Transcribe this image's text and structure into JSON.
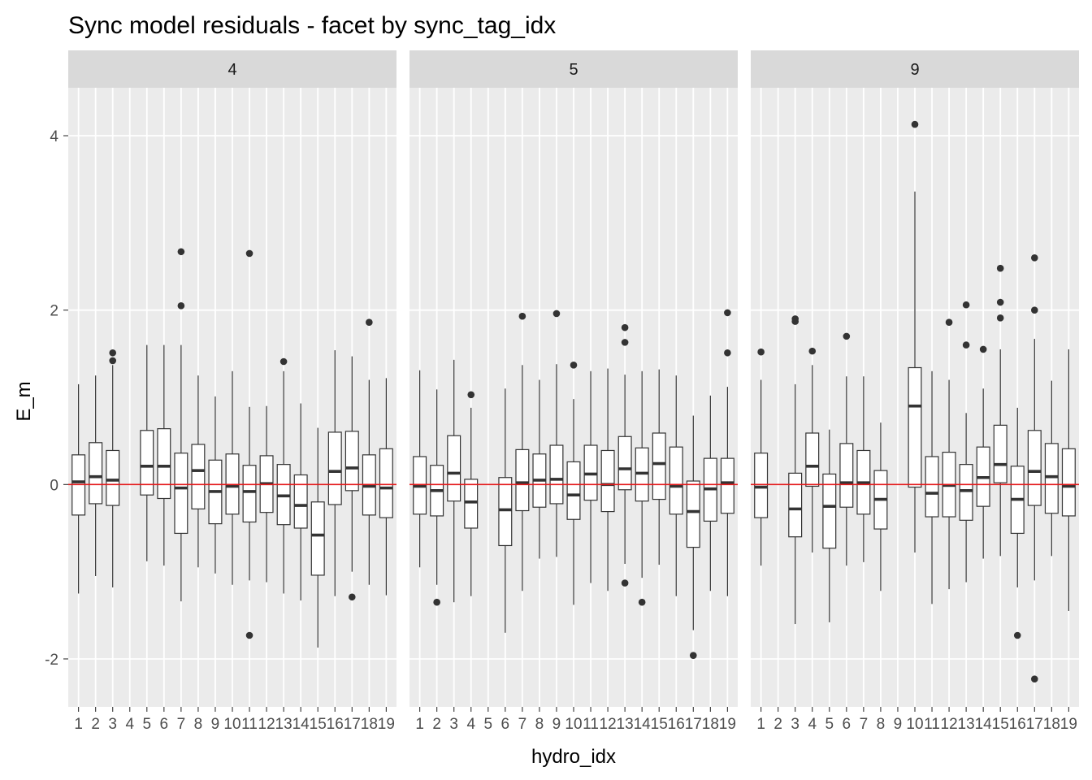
{
  "chart_data": {
    "type": "boxplot",
    "title": "Sync model residuals - facet by sync_tag_idx",
    "xlabel": "hydro_idx",
    "ylabel": "E_m",
    "ylim": [
      -2.55,
      4.55
    ],
    "yticks": [
      -2,
      0,
      2,
      4
    ],
    "reference_line": {
      "y": 0,
      "color": "#e41a1c"
    },
    "categories": [
      "1",
      "2",
      "3",
      "4",
      "5",
      "6",
      "7",
      "8",
      "9",
      "10",
      "11",
      "12",
      "13",
      "14",
      "15",
      "16",
      "17",
      "18",
      "19"
    ],
    "facets": [
      {
        "label": "4",
        "boxes": [
          {
            "x": "1",
            "lw": -1.25,
            "q1": -0.35,
            "med": 0.03,
            "q3": 0.34,
            "uw": 1.15,
            "out": []
          },
          {
            "x": "2",
            "lw": -1.05,
            "q1": -0.22,
            "med": 0.09,
            "q3": 0.48,
            "uw": 1.25,
            "out": []
          },
          {
            "x": "3",
            "lw": -1.18,
            "q1": -0.24,
            "med": 0.05,
            "q3": 0.39,
            "uw": 1.37,
            "out": [
              1.51,
              1.42
            ]
          },
          {
            "x": "5",
            "lw": -0.88,
            "q1": -0.12,
            "med": 0.21,
            "q3": 0.62,
            "uw": 1.6,
            "out": []
          },
          {
            "x": "6",
            "lw": -0.93,
            "q1": -0.16,
            "med": 0.21,
            "q3": 0.64,
            "uw": 1.6,
            "out": []
          },
          {
            "x": "7",
            "lw": -1.34,
            "q1": -0.56,
            "med": -0.04,
            "q3": 0.36,
            "uw": 1.6,
            "out": [
              2.67,
              2.05
            ]
          },
          {
            "x": "8",
            "lw": -0.95,
            "q1": -0.28,
            "med": 0.16,
            "q3": 0.46,
            "uw": 1.25,
            "out": []
          },
          {
            "x": "9",
            "lw": -1.02,
            "q1": -0.45,
            "med": -0.08,
            "q3": 0.28,
            "uw": 1.01,
            "out": []
          },
          {
            "x": "10",
            "lw": -1.15,
            "q1": -0.34,
            "med": -0.02,
            "q3": 0.35,
            "uw": 1.3,
            "out": []
          },
          {
            "x": "11",
            "lw": -1.1,
            "q1": -0.43,
            "med": -0.08,
            "q3": 0.22,
            "uw": 0.89,
            "out": [
              2.65,
              -1.73
            ]
          },
          {
            "x": "12",
            "lw": -1.12,
            "q1": -0.32,
            "med": 0.01,
            "q3": 0.33,
            "uw": 0.9,
            "out": []
          },
          {
            "x": "13",
            "lw": -1.25,
            "q1": -0.46,
            "med": -0.13,
            "q3": 0.23,
            "uw": 1.3,
            "out": [
              1.41
            ]
          },
          {
            "x": "14",
            "lw": -1.33,
            "q1": -0.5,
            "med": -0.24,
            "q3": 0.11,
            "uw": 0.93,
            "out": []
          },
          {
            "x": "15",
            "lw": -1.87,
            "q1": -1.04,
            "med": -0.58,
            "q3": -0.2,
            "uw": 0.65,
            "out": []
          },
          {
            "x": "16",
            "lw": -1.28,
            "q1": -0.23,
            "med": 0.15,
            "q3": 0.6,
            "uw": 1.54,
            "out": []
          },
          {
            "x": "17",
            "lw": -1.0,
            "q1": -0.07,
            "med": 0.19,
            "q3": 0.61,
            "uw": 1.47,
            "out": [
              -1.29
            ]
          },
          {
            "x": "18",
            "lw": -1.15,
            "q1": -0.35,
            "med": -0.02,
            "q3": 0.34,
            "uw": 1.2,
            "out": [
              1.86
            ]
          },
          {
            "x": "19",
            "lw": -1.27,
            "q1": -0.38,
            "med": -0.04,
            "q3": 0.41,
            "uw": 1.22,
            "out": []
          }
        ]
      },
      {
        "label": "5",
        "boxes": [
          {
            "x": "1",
            "lw": -0.95,
            "q1": -0.34,
            "med": -0.02,
            "q3": 0.32,
            "uw": 1.31,
            "out": []
          },
          {
            "x": "2",
            "lw": -1.15,
            "q1": -0.36,
            "med": -0.07,
            "q3": 0.22,
            "uw": 1.09,
            "out": [
              -1.35
            ]
          },
          {
            "x": "3",
            "lw": -1.35,
            "q1": -0.19,
            "med": 0.13,
            "q3": 0.56,
            "uw": 1.43,
            "out": []
          },
          {
            "x": "4",
            "lw": -1.28,
            "q1": -0.5,
            "med": -0.2,
            "q3": 0.06,
            "uw": 0.88,
            "out": [
              1.03
            ]
          },
          {
            "x": "6",
            "lw": -1.7,
            "q1": -0.7,
            "med": -0.29,
            "q3": 0.08,
            "uw": 1.1,
            "out": []
          },
          {
            "x": "7",
            "lw": -1.22,
            "q1": -0.3,
            "med": 0.02,
            "q3": 0.4,
            "uw": 1.37,
            "out": [
              1.93
            ]
          },
          {
            "x": "8",
            "lw": -0.85,
            "q1": -0.26,
            "med": 0.05,
            "q3": 0.35,
            "uw": 1.2,
            "out": []
          },
          {
            "x": "9",
            "lw": -0.83,
            "q1": -0.22,
            "med": 0.06,
            "q3": 0.45,
            "uw": 1.38,
            "out": [
              1.96
            ]
          },
          {
            "x": "10",
            "lw": -1.38,
            "q1": -0.4,
            "med": -0.12,
            "q3": 0.26,
            "uw": 0.98,
            "out": [
              1.37
            ]
          },
          {
            "x": "11",
            "lw": -1.13,
            "q1": -0.18,
            "med": 0.12,
            "q3": 0.45,
            "uw": 1.3,
            "out": []
          },
          {
            "x": "12",
            "lw": -1.22,
            "q1": -0.31,
            "med": 0.0,
            "q3": 0.39,
            "uw": 1.33,
            "out": []
          },
          {
            "x": "13",
            "lw": -0.91,
            "q1": -0.06,
            "med": 0.18,
            "q3": 0.55,
            "uw": 1.26,
            "out": [
              1.8,
              1.63,
              -1.13
            ]
          },
          {
            "x": "14",
            "lw": -1.07,
            "q1": -0.19,
            "med": 0.13,
            "q3": 0.42,
            "uw": 1.3,
            "out": [
              -1.35
            ]
          },
          {
            "x": "15",
            "lw": -0.92,
            "q1": -0.17,
            "med": 0.24,
            "q3": 0.59,
            "uw": 1.32,
            "out": []
          },
          {
            "x": "16",
            "lw": -1.28,
            "q1": -0.34,
            "med": -0.02,
            "q3": 0.43,
            "uw": 1.25,
            "out": []
          },
          {
            "x": "17",
            "lw": -1.67,
            "q1": -0.72,
            "med": -0.31,
            "q3": 0.04,
            "uw": 0.79,
            "out": [
              -1.96
            ]
          },
          {
            "x": "18",
            "lw": -1.22,
            "q1": -0.42,
            "med": -0.05,
            "q3": 0.3,
            "uw": 1.02,
            "out": []
          },
          {
            "x": "19",
            "lw": -1.28,
            "q1": -0.33,
            "med": 0.02,
            "q3": 0.3,
            "uw": 1.12,
            "out": [
              1.97,
              1.51
            ]
          }
        ]
      },
      {
        "label": "9",
        "boxes": [
          {
            "x": "1",
            "lw": -0.93,
            "q1": -0.38,
            "med": -0.03,
            "q3": 0.36,
            "uw": 1.2,
            "out": [
              1.52
            ]
          },
          {
            "x": "3",
            "lw": -1.6,
            "q1": -0.6,
            "med": -0.28,
            "q3": 0.13,
            "uw": 1.15,
            "out": [
              1.9,
              1.87
            ]
          },
          {
            "x": "4",
            "lw": -0.78,
            "q1": -0.02,
            "med": 0.21,
            "q3": 0.59,
            "uw": 1.37,
            "out": [
              1.53
            ]
          },
          {
            "x": "5",
            "lw": -1.58,
            "q1": -0.73,
            "med": -0.25,
            "q3": 0.12,
            "uw": 0.63,
            "out": []
          },
          {
            "x": "6",
            "lw": -0.93,
            "q1": -0.26,
            "med": 0.02,
            "q3": 0.47,
            "uw": 1.24,
            "out": [
              1.7
            ]
          },
          {
            "x": "7",
            "lw": -0.89,
            "q1": -0.34,
            "med": 0.02,
            "q3": 0.39,
            "uw": 1.24,
            "out": []
          },
          {
            "x": "8",
            "lw": -1.22,
            "q1": -0.51,
            "med": -0.17,
            "q3": 0.16,
            "uw": 0.71,
            "out": []
          },
          {
            "x": "10",
            "lw": -0.78,
            "q1": -0.03,
            "med": 0.9,
            "q3": 1.34,
            "uw": 3.36,
            "out": [
              4.13
            ]
          },
          {
            "x": "11",
            "lw": -1.37,
            "q1": -0.37,
            "med": -0.1,
            "q3": 0.32,
            "uw": 1.3,
            "out": []
          },
          {
            "x": "12",
            "lw": -1.2,
            "q1": -0.37,
            "med": -0.01,
            "q3": 0.37,
            "uw": 1.2,
            "out": [
              1.86
            ]
          },
          {
            "x": "13",
            "lw": -1.12,
            "q1": -0.41,
            "med": -0.07,
            "q3": 0.23,
            "uw": 0.82,
            "out": [
              2.06,
              1.6
            ]
          },
          {
            "x": "14",
            "lw": -0.85,
            "q1": -0.25,
            "med": 0.08,
            "q3": 0.43,
            "uw": 1.1,
            "out": [
              1.55
            ]
          },
          {
            "x": "15",
            "lw": -0.82,
            "q1": 0.02,
            "med": 0.23,
            "q3": 0.68,
            "uw": 1.55,
            "out": [
              2.48,
              2.09,
              1.91
            ]
          },
          {
            "x": "16",
            "lw": -1.18,
            "q1": -0.56,
            "med": -0.17,
            "q3": 0.21,
            "uw": 0.88,
            "out": [
              -1.73
            ]
          },
          {
            "x": "17",
            "lw": -1.1,
            "q1": -0.24,
            "med": 0.15,
            "q3": 0.62,
            "uw": 1.67,
            "out": [
              2.6,
              2.0,
              -2.23
            ]
          },
          {
            "x": "18",
            "lw": -0.82,
            "q1": -0.33,
            "med": 0.09,
            "q3": 0.47,
            "uw": 1.19,
            "out": []
          },
          {
            "x": "19",
            "lw": -1.45,
            "q1": -0.36,
            "med": -0.02,
            "q3": 0.41,
            "uw": 1.55,
            "out": []
          }
        ]
      }
    ],
    "colors": {
      "panel_background": "#ebebeb",
      "grid": "#ffffff",
      "strip_background": "#d9d9d9",
      "box_fill": "#ffffff",
      "box_stroke": "#333333",
      "reference_line": "#e41a1c"
    }
  }
}
